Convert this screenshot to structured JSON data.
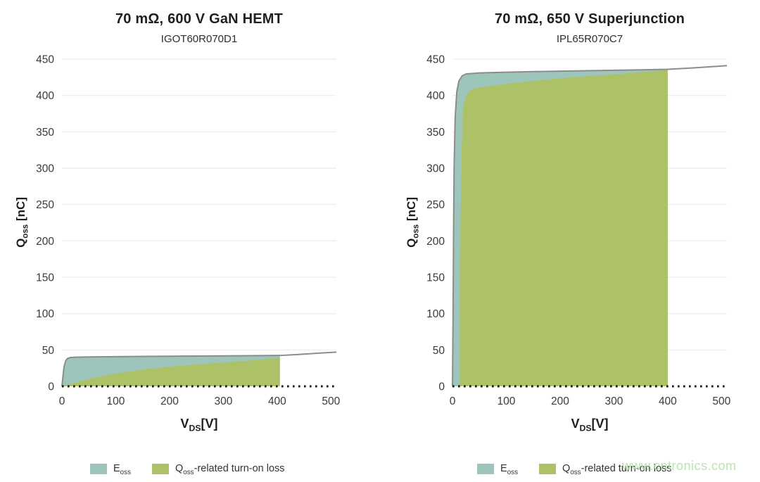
{
  "watermark": {
    "text": "www.cntronics.com",
    "color": "#aeddA6"
  },
  "colors": {
    "eoss_fill": "#9ec5bb",
    "turn_on_fill": "#adc166",
    "curve_line": "#8c8c8c",
    "gridline": "#ececec",
    "zero_dots": "#141414"
  },
  "legend": {
    "items": [
      {
        "swatch_color": "#9ec5bb",
        "label_base": "E",
        "label_sub": "oss",
        "label_rest": ""
      },
      {
        "swatch_color": "#adc166",
        "label_base": "Q",
        "label_sub": "oss",
        "label_rest": "-related turn-on loss"
      }
    ]
  },
  "chart_data": [
    {
      "type": "area",
      "title": "70 mΩ, 600 V GaN HEMT",
      "subtitle": "IGOT60R070D1",
      "xlabel": {
        "base": "V",
        "sub": "DS",
        "unit": "[V]"
      },
      "ylabel": {
        "base": "Q",
        "sub": "oss",
        "unit": " [nC]"
      },
      "xlim": [
        0,
        510
      ],
      "ylim": [
        0,
        450
      ],
      "xticks": [
        0,
        100,
        200,
        300,
        400,
        500
      ],
      "yticks": [
        0,
        50,
        100,
        150,
        200,
        250,
        300,
        350,
        400,
        450
      ],
      "grid": true,
      "legend_position": "bottom",
      "area_end_v": 405,
      "qoss_curve": {
        "name": "Qoss total charge curve",
        "x": [
          0,
          2,
          4,
          7,
          10,
          15,
          25,
          50,
          100,
          150,
          200,
          250,
          300,
          350,
          405,
          440,
          470,
          510
        ],
        "y": [
          0,
          14,
          27,
          35,
          38,
          39.5,
          40,
          40.4,
          40.8,
          41.1,
          41.4,
          41.6,
          41.9,
          42.1,
          42.4,
          43.8,
          45.2,
          47
        ]
      },
      "turn_on_loss_boundary": {
        "name": "Qoss-related turn-on loss",
        "x": [
          0,
          25,
          50,
          75,
          100,
          150,
          200,
          250,
          300,
          350,
          380,
          405
        ],
        "y": [
          0,
          5,
          10,
          14,
          17.5,
          23,
          27,
          30,
          32.5,
          35.5,
          37.5,
          39.5
        ]
      }
    },
    {
      "type": "area",
      "title": "70 mΩ, 650 V Superjunction",
      "subtitle": "IPL65R070C7",
      "xlabel": {
        "base": "V",
        "sub": "DS",
        "unit": "[V]"
      },
      "ylabel": {
        "base": "Q",
        "sub": "oss",
        "unit": " [nC]"
      },
      "xlim": [
        0,
        510
      ],
      "ylim": [
        0,
        450
      ],
      "xticks": [
        0,
        100,
        200,
        300,
        400,
        500
      ],
      "yticks": [
        0,
        50,
        100,
        150,
        200,
        250,
        300,
        350,
        400,
        450
      ],
      "grid": true,
      "legend_position": "bottom",
      "area_end_v": 400,
      "qoss_curve": {
        "name": "Qoss total charge curve",
        "x": [
          0,
          1,
          2,
          3,
          5,
          8,
          12,
          18,
          25,
          50,
          100,
          150,
          200,
          250,
          300,
          350,
          400,
          450,
          510
        ],
        "y": [
          0,
          90,
          210,
          300,
          370,
          405,
          420,
          427,
          429.5,
          431,
          432,
          432.8,
          433.4,
          434,
          434.6,
          435.3,
          436,
          438,
          441
        ]
      },
      "turn_on_loss_boundary": {
        "name": "Qoss-related turn-on loss",
        "x": [
          13,
          14,
          15,
          17,
          20,
          25,
          35,
          50,
          100,
          150,
          200,
          250,
          300,
          350,
          400
        ],
        "y": [
          0,
          110,
          225,
          325,
          383,
          400,
          408,
          411,
          416,
          420,
          423.5,
          426.5,
          429,
          432,
          434.8
        ]
      }
    }
  ]
}
